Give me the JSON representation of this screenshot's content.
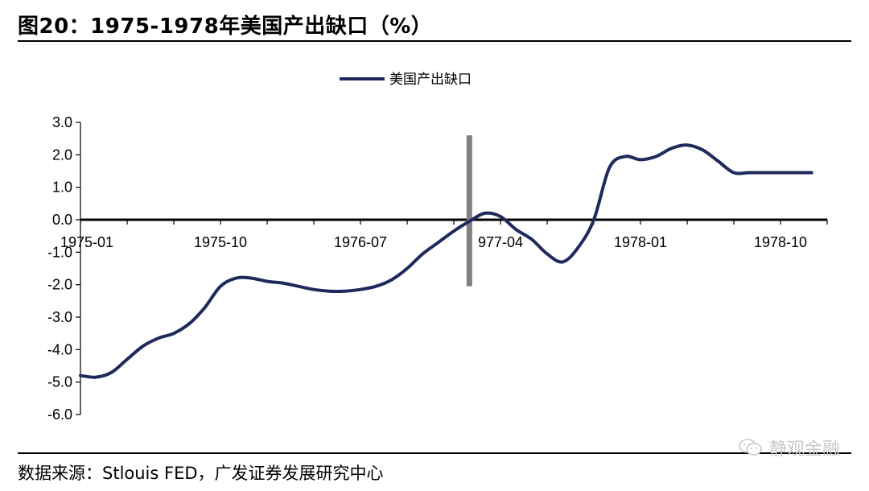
{
  "figure": {
    "title": "图20：1975-1978年美国产出缺口（%）",
    "source": "数据来源：Stlouis FED，广发证券发展研究中心",
    "watermark": "静观金融"
  },
  "colors": {
    "series": "#1f2a5c",
    "marker_bar": "#808080",
    "axis": "#000000"
  },
  "chart_data": {
    "type": "line",
    "title": "",
    "xlabel": "",
    "ylabel": "",
    "ylim": [
      -6.0,
      3.0
    ],
    "yticks": [
      "3.0",
      "2.0",
      "1.0",
      "0.0",
      "-1.0",
      "-2.0",
      "-3.0",
      "-4.0",
      "-5.0",
      "-6.0"
    ],
    "xticks": [
      "1975-01",
      "1975-10",
      "1976-07",
      "977-04",
      "1978-01",
      "1978-10"
    ],
    "legend": {
      "position": "top-center"
    },
    "grid": false,
    "vertical_marker": {
      "x": "1977-02",
      "y_range": [
        -2.05,
        2.6
      ]
    },
    "series": [
      {
        "name": "美国产出缺口",
        "x": [
          "1975-01",
          "1975-02",
          "1975-03",
          "1975-04",
          "1975-05",
          "1975-06",
          "1975-07",
          "1975-08",
          "1975-09",
          "1975-10",
          "1975-11",
          "1975-12",
          "1976-01",
          "1976-02",
          "1976-03",
          "1976-04",
          "1976-05",
          "1976-06",
          "1976-07",
          "1976-08",
          "1976-09",
          "1976-10",
          "1976-11",
          "1976-12",
          "1977-01",
          "1977-02",
          "1977-03",
          "1977-04",
          "1977-05",
          "1977-06",
          "1977-07",
          "1977-08",
          "1977-09",
          "1977-10",
          "1977-11",
          "1977-12",
          "1978-01",
          "1978-02",
          "1978-03",
          "1978-04",
          "1978-05",
          "1978-06",
          "1978-07",
          "1978-08",
          "1978-09",
          "1978-10",
          "1978-11",
          "1978-12"
        ],
        "values": [
          -4.8,
          -4.85,
          -4.7,
          -4.3,
          -3.9,
          -3.65,
          -3.5,
          -3.2,
          -2.7,
          -2.05,
          -1.8,
          -1.8,
          -1.9,
          -1.95,
          -2.05,
          -2.15,
          -2.2,
          -2.2,
          -2.15,
          -2.05,
          -1.85,
          -1.5,
          -1.05,
          -0.7,
          -0.35,
          -0.05,
          0.2,
          0.1,
          -0.3,
          -0.6,
          -1.05,
          -1.3,
          -0.85,
          0.0,
          1.6,
          1.95,
          1.85,
          1.95,
          2.2,
          2.3,
          2.15,
          1.8,
          1.45,
          1.45,
          1.45,
          1.45,
          1.45,
          1.45
        ]
      }
    ]
  }
}
